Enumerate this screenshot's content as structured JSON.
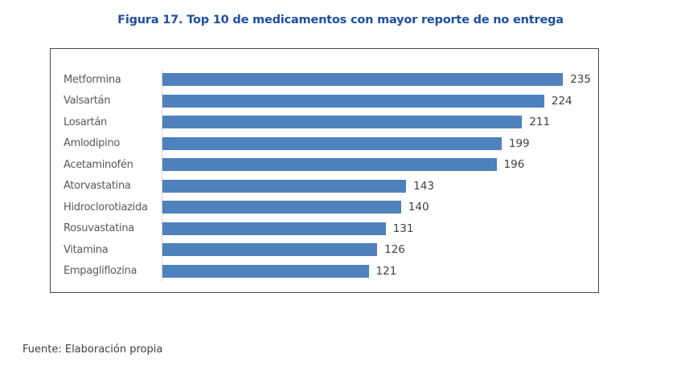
{
  "title": "Figura 17. Top 10 de medicamentos con mayor reporte de no entrega",
  "source": "Fuente: Elaboración propia",
  "colors": {
    "title_blue": "#1e4fa3",
    "bar_blue": "#4f81bd",
    "category_text": "#595959",
    "value_text": "#404040",
    "frame_border": "#4a4a4a",
    "axis_line": "#d6d6d6"
  },
  "chart_data": {
    "type": "bar",
    "orientation": "horizontal",
    "title": "Figura 17. Top 10 de medicamentos con mayor reporte de no entrega",
    "categories": [
      "Metformina",
      "Valsartán",
      "Losartán",
      "Amlodipino",
      "Acetaminofén",
      "Atorvastatina",
      "Hidroclorotiazida",
      "Rosuvastatina",
      "Vitamina",
      "Empagliflozina"
    ],
    "values": [
      235,
      224,
      211,
      199,
      196,
      143,
      140,
      131,
      126,
      121
    ],
    "xlabel": "",
    "ylabel": "",
    "xlim": [
      0,
      250
    ],
    "grid": false,
    "legend": false,
    "data_labels": true,
    "bar_color": "#4f81bd"
  }
}
